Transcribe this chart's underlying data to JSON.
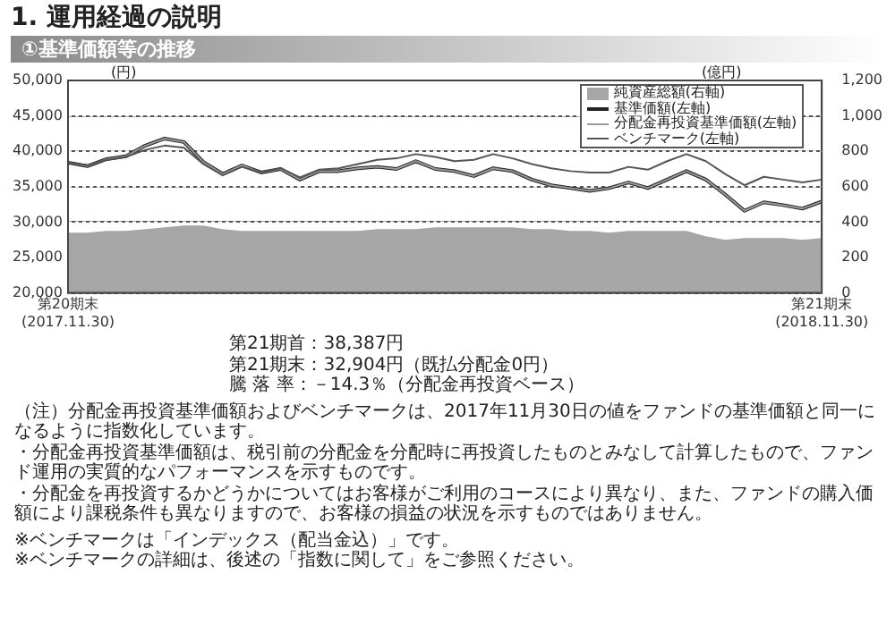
{
  "chart_data": {
    "type": "line",
    "title": "1. 運用経過の説明",
    "subtitle": "①基準価額等の推移",
    "ylabel": "(円)",
    "y2label": "(億円)",
    "categories": [
      "第20期末\n(2017.11.30)",
      null,
      null,
      null,
      null,
      null,
      null,
      null,
      null,
      null,
      null,
      null,
      null,
      null,
      null,
      null,
      null,
      null,
      null,
      null,
      null,
      null,
      null,
      null,
      null,
      null,
      null,
      null,
      null,
      null,
      null,
      null,
      null,
      null,
      null,
      null,
      null,
      null,
      null,
      "第21期末\n(2018.11.30)"
    ],
    "series": [
      {
        "name": "純資産総額(右軸)",
        "type": "area",
        "axis": "y2",
        "color": "#a6a6a6",
        "values": [
          340,
          340,
          350,
          350,
          360,
          370,
          380,
          380,
          360,
          350,
          350,
          350,
          350,
          350,
          350,
          350,
          360,
          360,
          360,
          370,
          370,
          370,
          370,
          370,
          360,
          360,
          350,
          350,
          340,
          350,
          350,
          350,
          350,
          320,
          300,
          310,
          310,
          310,
          300,
          310
        ]
      },
      {
        "name": "基準価額(左軸)",
        "color": "#222222",
        "values": [
          38400,
          37900,
          38900,
          39300,
          40800,
          41800,
          41300,
          38500,
          36800,
          38000,
          37000,
          37500,
          36000,
          37200,
          37200,
          37600,
          37800,
          37500,
          38600,
          37500,
          37200,
          36500,
          37600,
          37200,
          36000,
          35200,
          34800,
          34400,
          34800,
          35600,
          34800,
          36000,
          37200,
          36000,
          33900,
          31600,
          32800,
          32400,
          31900,
          32900
        ]
      },
      {
        "name": "分配金再投資基準価額(左軸)",
        "color": "#9a9a9a",
        "values": [
          38400,
          37900,
          38900,
          39300,
          40800,
          41800,
          41300,
          38500,
          36800,
          38000,
          37000,
          37500,
          36000,
          37200,
          37200,
          37600,
          37800,
          37500,
          38600,
          37500,
          37200,
          36500,
          37600,
          37200,
          36000,
          35200,
          34800,
          34400,
          34800,
          35600,
          34800,
          36000,
          37200,
          36000,
          33900,
          31600,
          32800,
          32400,
          31900,
          32900
        ]
      },
      {
        "name": "ベンチマーク(左軸)",
        "color": "#555555",
        "values": [
          38400,
          38000,
          38800,
          39200,
          40200,
          40800,
          40500,
          38200,
          36600,
          37800,
          37000,
          37600,
          36300,
          37400,
          37600,
          38200,
          38800,
          39000,
          39600,
          39200,
          38600,
          38800,
          39600,
          39000,
          38200,
          37600,
          37200,
          37000,
          37000,
          37800,
          37400,
          38600,
          39600,
          38600,
          36800,
          35200,
          36400,
          36000,
          35600,
          36000
        ]
      }
    ],
    "ylim": [
      20000,
      50000
    ],
    "yticks": [
      {
        "value": 20000,
        "label": "20,000"
      },
      {
        "value": 25000,
        "label": "25,000"
      },
      {
        "value": 30000,
        "label": "30,000"
      },
      {
        "value": 35000,
        "label": "35,000"
      },
      {
        "value": 40000,
        "label": "40,000"
      },
      {
        "value": 45000,
        "label": "45,000"
      },
      {
        "value": 50000,
        "label": "50,000"
      }
    ],
    "y2lim": [
      0,
      1200
    ],
    "y2ticks": [
      0,
      200,
      400,
      600,
      800,
      {
        "value": 1000,
        "label": "1,000"
      },
      {
        "value": 1200,
        "label": "1,200"
      }
    ],
    "grid": "y",
    "legend": "top right",
    "marker": "none",
    "line_style": "solid",
    "annotations": [
      "第21期首：38,387円",
      "第21期末：32,904円（既払分配金0円）",
      "騰 落 率：－14.3％（分配金再投資ベース）",
      "（注）分配金再投資基準価額およびベンチマークは、2017年11月30日の値をファンドの基準価額と同一になるように指数化しています。",
      "・分配金再投資基準価額は、税引前の分配金を分配時に再投資したものとみなして計算したもので、ファンド運用の実質的なパフォーマンスを示すものです。",
      "・分配金を再投資するかどうかについてはお客様がご利用のコースにより異なり、また、ファンドの購入価額により課税条件も異なりますので、お客様の損益の状況を示すものではありません。",
      "※ベンチマークは「インデックス（配当金込）」です。",
      "※ベンチマークの詳細は、後述の「指数に関して」をご参照ください。"
    ]
  }
}
